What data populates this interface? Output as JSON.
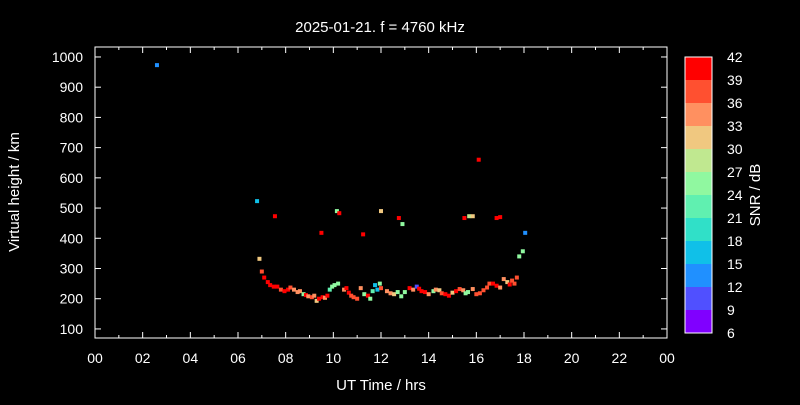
{
  "chart_data": {
    "type": "scatter",
    "title": "2025-01-21. f = 4760 kHz",
    "xlabel": "UT Time / hrs",
    "ylabel": "Virtual height / km",
    "xlim": [
      0,
      24
    ],
    "ylim": [
      70,
      1033
    ],
    "xticks": [
      "00",
      "02",
      "04",
      "06",
      "08",
      "10",
      "12",
      "14",
      "16",
      "18",
      "20",
      "22",
      "00"
    ],
    "yticks": [
      100,
      200,
      300,
      400,
      500,
      600,
      700,
      800,
      900,
      1000
    ],
    "grid": false,
    "colorbar": {
      "label": "SNR / dB",
      "ticks": [
        42,
        39,
        36,
        33,
        30,
        27,
        24,
        21,
        18,
        15,
        12,
        9,
        6
      ],
      "colors": [
        "#8000ff",
        "#5050ff",
        "#2090ff",
        "#10c0e8",
        "#30e0c8",
        "#60f0b0",
        "#90f8a0",
        "#c0e890",
        "#f0c880",
        "#ff9060",
        "#ff5030",
        "#ff0000"
      ]
    },
    "points": [
      [
        2.6,
        973,
        12
      ],
      [
        6.8,
        523,
        16
      ],
      [
        7.55,
        473,
        40
      ],
      [
        9.5,
        418,
        40
      ],
      [
        10.15,
        490,
        26
      ],
      [
        10.25,
        483,
        40
      ],
      [
        11.25,
        413,
        40
      ],
      [
        12.0,
        490,
        31
      ],
      [
        12.75,
        467,
        40
      ],
      [
        12.9,
        447,
        25
      ],
      [
        15.5,
        467,
        40
      ],
      [
        15.7,
        473,
        28
      ],
      [
        15.85,
        473,
        31
      ],
      [
        16.1,
        660,
        40
      ],
      [
        16.85,
        467,
        40
      ],
      [
        17.0,
        470,
        40
      ],
      [
        18.05,
        418,
        13
      ],
      [
        17.95,
        357,
        26
      ],
      [
        17.8,
        340,
        24
      ],
      [
        6.9,
        332,
        31
      ],
      [
        7.0,
        290,
        38
      ],
      [
        7.1,
        270,
        40
      ],
      [
        7.25,
        255,
        40
      ],
      [
        7.35,
        245,
        40
      ],
      [
        7.5,
        240,
        40
      ],
      [
        7.65,
        240,
        40
      ],
      [
        7.8,
        230,
        37
      ],
      [
        7.95,
        225,
        40
      ],
      [
        8.1,
        230,
        40
      ],
      [
        8.2,
        237,
        37
      ],
      [
        8.35,
        230,
        35
      ],
      [
        8.5,
        222,
        33
      ],
      [
        8.6,
        225,
        33
      ],
      [
        8.75,
        215,
        26
      ],
      [
        8.85,
        212,
        40
      ],
      [
        8.95,
        208,
        33
      ],
      [
        9.1,
        205,
        37
      ],
      [
        9.2,
        210,
        33
      ],
      [
        9.3,
        193,
        32
      ],
      [
        9.4,
        200,
        40
      ],
      [
        9.55,
        205,
        40
      ],
      [
        9.65,
        203,
        33
      ],
      [
        9.75,
        210,
        40
      ],
      [
        9.85,
        230,
        21
      ],
      [
        9.95,
        240,
        25
      ],
      [
        10.05,
        245,
        24
      ],
      [
        10.2,
        250,
        24
      ],
      [
        10.45,
        230,
        35
      ],
      [
        10.55,
        235,
        40
      ],
      [
        10.65,
        220,
        40
      ],
      [
        10.75,
        210,
        38
      ],
      [
        10.85,
        205,
        36
      ],
      [
        11.0,
        200,
        38
      ],
      [
        11.15,
        235,
        34
      ],
      [
        11.3,
        215,
        25
      ],
      [
        11.45,
        210,
        40
      ],
      [
        11.55,
        200,
        25
      ],
      [
        11.65,
        225,
        21
      ],
      [
        11.75,
        245,
        16
      ],
      [
        11.85,
        230,
        16
      ],
      [
        11.95,
        250,
        24
      ],
      [
        12.0,
        235,
        36
      ],
      [
        12.25,
        225,
        33
      ],
      [
        12.4,
        218,
        34
      ],
      [
        12.55,
        215,
        31
      ],
      [
        12.7,
        222,
        24
      ],
      [
        12.85,
        208,
        24
      ],
      [
        13.0,
        222,
        25
      ],
      [
        13.2,
        235,
        40
      ],
      [
        13.35,
        230,
        33
      ],
      [
        13.5,
        240,
        10
      ],
      [
        13.6,
        233,
        40
      ],
      [
        13.7,
        225,
        40
      ],
      [
        13.85,
        222,
        40
      ],
      [
        14.0,
        215,
        33
      ],
      [
        14.2,
        225,
        26
      ],
      [
        14.3,
        230,
        33
      ],
      [
        14.45,
        228,
        31
      ],
      [
        14.55,
        218,
        38
      ],
      [
        14.7,
        215,
        40
      ],
      [
        14.85,
        210,
        40
      ],
      [
        15.0,
        220,
        32
      ],
      [
        15.15,
        225,
        40
      ],
      [
        15.3,
        232,
        38
      ],
      [
        15.45,
        228,
        34
      ],
      [
        15.55,
        218,
        24
      ],
      [
        15.65,
        222,
        26
      ],
      [
        15.85,
        232,
        34
      ],
      [
        16.0,
        215,
        36
      ],
      [
        16.15,
        218,
        36
      ],
      [
        16.3,
        228,
        37
      ],
      [
        16.45,
        237,
        38
      ],
      [
        16.55,
        250,
        36
      ],
      [
        16.7,
        250,
        40
      ],
      [
        16.85,
        243,
        40
      ],
      [
        17.0,
        237,
        34
      ],
      [
        17.15,
        265,
        35
      ],
      [
        17.3,
        255,
        32
      ],
      [
        17.4,
        247,
        40
      ],
      [
        17.5,
        260,
        38
      ],
      [
        17.6,
        250,
        38
      ],
      [
        17.7,
        270,
        38
      ]
    ]
  }
}
